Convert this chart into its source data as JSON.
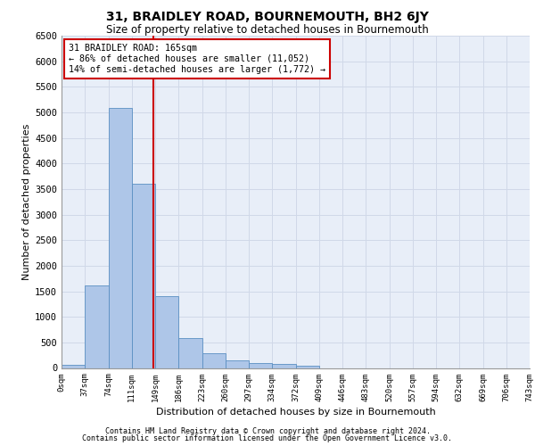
{
  "title": "31, BRAIDLEY ROAD, BOURNEMOUTH, BH2 6JY",
  "subtitle": "Size of property relative to detached houses in Bournemouth",
  "xlabel": "Distribution of detached houses by size in Bournemouth",
  "ylabel": "Number of detached properties",
  "footer1": "Contains HM Land Registry data © Crown copyright and database right 2024.",
  "footer2": "Contains public sector information licensed under the Open Government Licence v3.0.",
  "bar_values": [
    60,
    1620,
    5080,
    3600,
    1400,
    580,
    290,
    145,
    100,
    70,
    50,
    0,
    0,
    0,
    0,
    0,
    0,
    0,
    0,
    0
  ],
  "bin_labels": [
    "0sqm",
    "37sqm",
    "74sqm",
    "111sqm",
    "149sqm",
    "186sqm",
    "223sqm",
    "260sqm",
    "297sqm",
    "334sqm",
    "372sqm",
    "409sqm",
    "446sqm",
    "483sqm",
    "520sqm",
    "557sqm",
    "594sqm",
    "632sqm",
    "669sqm",
    "706sqm",
    "743sqm"
  ],
  "bar_color": "#aec6e8",
  "bar_edgecolor": "#5a8fc2",
  "vline_x": 3.43,
  "annotation_line1": "31 BRAIDLEY ROAD: 165sqm",
  "annotation_line2": "← 86% of detached houses are smaller (11,052)",
  "annotation_line3": "14% of semi-detached houses are larger (1,772) →",
  "ylim": [
    0,
    6500
  ],
  "yticks": [
    0,
    500,
    1000,
    1500,
    2000,
    2500,
    3000,
    3500,
    4000,
    4500,
    5000,
    5500,
    6000,
    6500
  ],
  "annotation_box_color": "#ffffff",
  "annotation_box_edgecolor": "#cc0000",
  "vline_color": "#cc0000",
  "grid_color": "#d0d8e8",
  "bg_color": "#e8eef8"
}
